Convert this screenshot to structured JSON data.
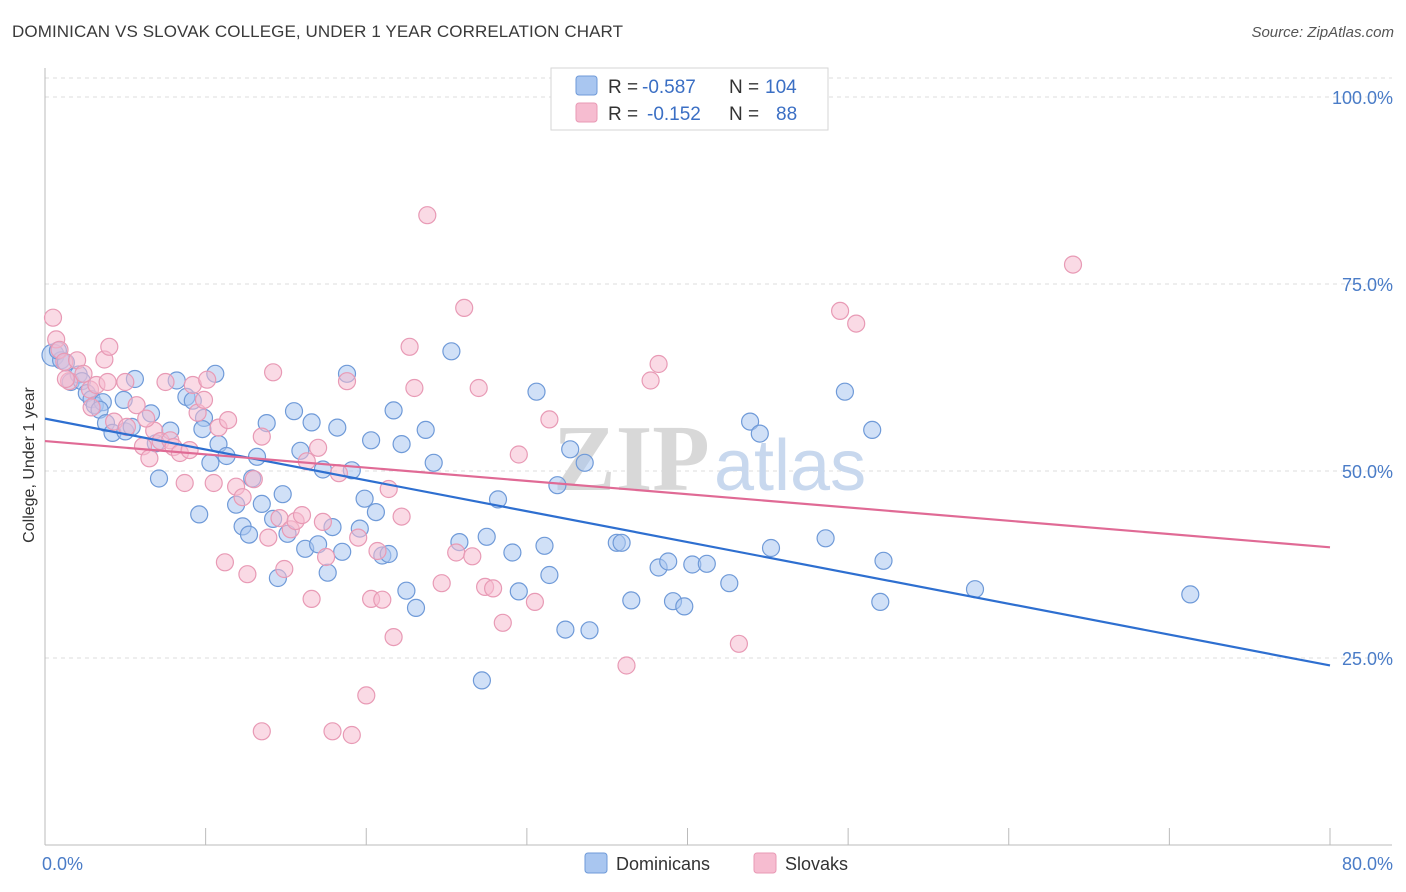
{
  "title": "DOMINICAN VS SLOVAK COLLEGE, UNDER 1 YEAR CORRELATION CHART",
  "source": "Source: ZipAtlas.com",
  "colors": {
    "dominicans_fill": "#a9c6f0",
    "dominicans_stroke": "#6f9ad8",
    "dominicans_line": "#2e6fd0",
    "slovaks_fill": "#f6bcd0",
    "slovaks_stroke": "#e89ab5",
    "slovaks_line": "#e06a95",
    "tick": "#4a7cc7",
    "grid": "#dddddd"
  },
  "legend": {
    "rows": [
      {
        "r_label": "R =",
        "r_value": "-0.587",
        "n_label": "N =",
        "n_value": "104"
      },
      {
        "r_label": "R =",
        "r_value": "-0.152",
        "n_label": "N =",
        "n_value": "88"
      }
    ]
  },
  "watermark": {
    "zip": "ZIP",
    "atlas": "atlas"
  },
  "chart_data": {
    "type": "scatter",
    "ylabel": "College, Under 1 year",
    "xlim": [
      0,
      80
    ],
    "ylim": [
      0,
      105
    ],
    "x_tick_labels": [
      {
        "value": 0,
        "label": "0.0%"
      },
      {
        "value": 80,
        "label": "80.0%"
      }
    ],
    "y_tick_labels": [
      {
        "value": 100,
        "label": "100.0%"
      },
      {
        "value": 75,
        "label": "75.0%"
      },
      {
        "value": 50,
        "label": "50.0%"
      },
      {
        "value": 25,
        "label": "25.0%"
      }
    ],
    "grid": true,
    "legend_placement": "top-center",
    "series": [
      {
        "name": "Dominicans",
        "trend": {
          "x0": 0,
          "y0": 57.0,
          "x1": 80,
          "y1": 24.0
        },
        "points": [
          [
            0.5,
            65.5
          ],
          [
            1.0,
            64.8
          ],
          [
            1.6,
            61.9
          ],
          [
            1.3,
            64.5
          ],
          [
            2.1,
            62.9
          ],
          [
            2.3,
            62.0
          ],
          [
            2.6,
            60.4
          ],
          [
            2.9,
            59.6
          ],
          [
            3.1,
            58.8
          ],
          [
            3.6,
            59.2
          ],
          [
            3.4,
            58.2
          ],
          [
            3.8,
            56.4
          ],
          [
            4.2,
            55.1
          ],
          [
            5.0,
            55.3
          ],
          [
            5.4,
            55.9
          ],
          [
            5.6,
            62.3
          ],
          [
            6.6,
            57.7
          ],
          [
            7.1,
            49.0
          ],
          [
            6.9,
            53.7
          ],
          [
            7.8,
            55.4
          ],
          [
            8.2,
            62.1
          ],
          [
            8.8,
            59.9
          ],
          [
            9.2,
            59.4
          ],
          [
            9.9,
            57.1
          ],
          [
            10.3,
            51.1
          ],
          [
            10.6,
            63.0
          ],
          [
            10.8,
            53.6
          ],
          [
            9.6,
            44.2
          ],
          [
            9.8,
            55.6
          ],
          [
            11.9,
            45.5
          ],
          [
            12.3,
            42.6
          ],
          [
            12.7,
            41.5
          ],
          [
            12.9,
            49.0
          ],
          [
            13.2,
            51.9
          ],
          [
            13.5,
            45.6
          ],
          [
            13.8,
            56.4
          ],
          [
            14.2,
            43.6
          ],
          [
            14.5,
            35.7
          ],
          [
            14.8,
            46.9
          ],
          [
            15.1,
            41.6
          ],
          [
            15.5,
            58.0
          ],
          [
            15.9,
            52.7
          ],
          [
            16.2,
            39.6
          ],
          [
            16.6,
            56.5
          ],
          [
            17.0,
            40.2
          ],
          [
            17.3,
            50.2
          ],
          [
            17.6,
            36.4
          ],
          [
            17.9,
            42.5
          ],
          [
            18.2,
            55.8
          ],
          [
            18.5,
            39.2
          ],
          [
            18.8,
            63.0
          ],
          [
            19.1,
            50.1
          ],
          [
            19.6,
            42.3
          ],
          [
            19.9,
            46.3
          ],
          [
            20.3,
            54.1
          ],
          [
            20.6,
            44.5
          ],
          [
            21.0,
            38.7
          ],
          [
            21.4,
            38.9
          ],
          [
            21.7,
            58.1
          ],
          [
            22.2,
            53.6
          ],
          [
            22.5,
            34.0
          ],
          [
            23.1,
            31.7
          ],
          [
            23.7,
            55.5
          ],
          [
            24.2,
            51.1
          ],
          [
            25.3,
            66.0
          ],
          [
            25.8,
            40.5
          ],
          [
            27.2,
            22.0
          ],
          [
            27.5,
            41.2
          ],
          [
            28.2,
            46.2
          ],
          [
            29.5,
            33.9
          ],
          [
            29.1,
            39.1
          ],
          [
            30.6,
            60.6
          ],
          [
            31.1,
            40.0
          ],
          [
            31.4,
            36.1
          ],
          [
            31.9,
            48.1
          ],
          [
            32.4,
            28.8
          ],
          [
            32.7,
            52.9
          ],
          [
            33.6,
            51.1
          ],
          [
            33.9,
            28.7
          ],
          [
            35.6,
            40.4
          ],
          [
            35.9,
            40.4
          ],
          [
            36.5,
            32.7
          ],
          [
            38.2,
            37.1
          ],
          [
            38.8,
            37.9
          ],
          [
            39.1,
            32.6
          ],
          [
            39.8,
            31.9
          ],
          [
            40.3,
            37.5
          ],
          [
            41.2,
            37.6
          ],
          [
            42.6,
            35.0
          ],
          [
            43.9,
            56.6
          ],
          [
            44.5,
            55.0
          ],
          [
            45.2,
            39.7
          ],
          [
            48.6,
            41.0
          ],
          [
            49.8,
            60.6
          ],
          [
            51.5,
            55.5
          ],
          [
            52.0,
            32.5
          ],
          [
            52.2,
            38.0
          ],
          [
            57.9,
            34.2
          ],
          [
            71.3,
            33.5
          ],
          [
            0.8,
            66.1
          ],
          [
            4.9,
            59.5
          ],
          [
            11.3,
            52.0
          ]
        ]
      },
      {
        "name": "Slovaks",
        "trend": {
          "x0": 0,
          "y0": 54.0,
          "x1": 80,
          "y1": 39.8
        },
        "points": [
          [
            0.5,
            70.5
          ],
          [
            0.7,
            67.6
          ],
          [
            0.9,
            66.2
          ],
          [
            1.2,
            64.6
          ],
          [
            1.5,
            62.0
          ],
          [
            2.0,
            64.8
          ],
          [
            2.4,
            63.0
          ],
          [
            2.8,
            60.9
          ],
          [
            3.2,
            61.5
          ],
          [
            3.7,
            64.9
          ],
          [
            4.0,
            66.6
          ],
          [
            3.9,
            61.9
          ],
          [
            4.3,
            56.6
          ],
          [
            5.0,
            61.9
          ],
          [
            5.1,
            55.9
          ],
          [
            5.7,
            58.8
          ],
          [
            6.1,
            53.3
          ],
          [
            6.5,
            51.7
          ],
          [
            6.8,
            55.4
          ],
          [
            7.2,
            54.0
          ],
          [
            7.5,
            61.9
          ],
          [
            7.8,
            54.1
          ],
          [
            8.0,
            53.2
          ],
          [
            8.4,
            52.4
          ],
          [
            8.7,
            48.4
          ],
          [
            9.2,
            61.5
          ],
          [
            9.5,
            57.8
          ],
          [
            9.9,
            59.5
          ],
          [
            10.1,
            62.2
          ],
          [
            10.5,
            48.4
          ],
          [
            10.8,
            55.8
          ],
          [
            11.2,
            37.8
          ],
          [
            11.4,
            56.8
          ],
          [
            11.9,
            47.9
          ],
          [
            12.3,
            46.5
          ],
          [
            12.6,
            36.2
          ],
          [
            13.0,
            48.9
          ],
          [
            13.5,
            54.6
          ],
          [
            13.9,
            41.1
          ],
          [
            14.2,
            63.2
          ],
          [
            14.6,
            43.7
          ],
          [
            14.9,
            36.9
          ],
          [
            15.3,
            42.2
          ],
          [
            15.6,
            43.3
          ],
          [
            16.0,
            44.1
          ],
          [
            16.3,
            51.3
          ],
          [
            16.6,
            32.9
          ],
          [
            17.0,
            53.1
          ],
          [
            17.3,
            43.2
          ],
          [
            17.5,
            38.5
          ],
          [
            17.9,
            15.2
          ],
          [
            18.3,
            49.7
          ],
          [
            18.8,
            62.0
          ],
          [
            19.1,
            14.7
          ],
          [
            19.5,
            41.1
          ],
          [
            20.0,
            20.0
          ],
          [
            20.3,
            32.9
          ],
          [
            20.7,
            39.3
          ],
          [
            21.0,
            32.8
          ],
          [
            21.4,
            47.6
          ],
          [
            21.7,
            27.8
          ],
          [
            22.2,
            43.9
          ],
          [
            22.7,
            66.6
          ],
          [
            23.0,
            61.1
          ],
          [
            23.8,
            84.2
          ],
          [
            24.7,
            35.0
          ],
          [
            25.6,
            39.1
          ],
          [
            26.1,
            71.8
          ],
          [
            26.6,
            38.6
          ],
          [
            27.0,
            61.1
          ],
          [
            27.4,
            34.5
          ],
          [
            27.9,
            34.3
          ],
          [
            28.5,
            29.7
          ],
          [
            29.5,
            52.2
          ],
          [
            30.5,
            32.5
          ],
          [
            31.4,
            56.9
          ],
          [
            36.2,
            24.0
          ],
          [
            37.7,
            62.1
          ],
          [
            38.2,
            64.3
          ],
          [
            43.2,
            26.9
          ],
          [
            49.5,
            71.4
          ],
          [
            50.5,
            69.7
          ],
          [
            64.0,
            77.6
          ],
          [
            1.3,
            62.3
          ],
          [
            6.3,
            57.0
          ],
          [
            9.0,
            52.8
          ],
          [
            13.5,
            15.2
          ],
          [
            2.9,
            58.5
          ]
        ]
      }
    ],
    "bottom_legend": [
      "Dominicans",
      "Slovaks"
    ]
  }
}
